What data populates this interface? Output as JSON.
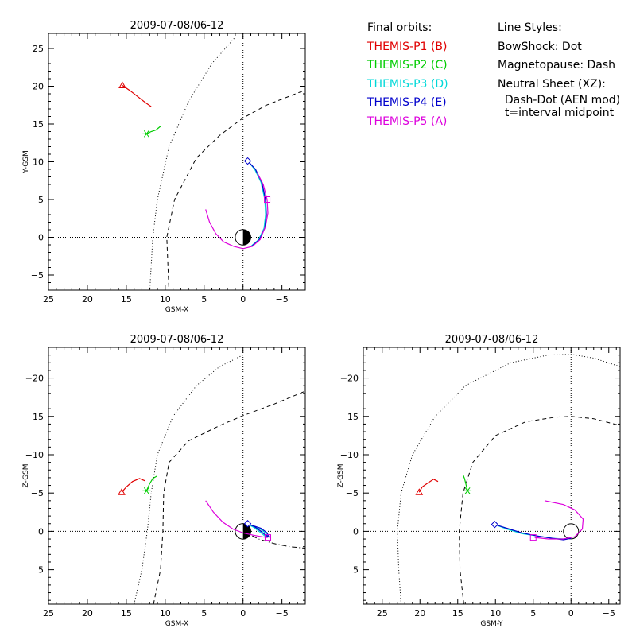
{
  "legend": {
    "orbits_title": "Final orbits:",
    "probes": [
      {
        "label": "THEMIS-P1 (B)",
        "color": "#e00000"
      },
      {
        "label": "THEMIS-P2 (C)",
        "color": "#00cc00"
      },
      {
        "label": "THEMIS-P3 (D)",
        "color": "#00d8d8"
      },
      {
        "label": "THEMIS-P4 (E)",
        "color": "#0000cc"
      },
      {
        "label": "THEMIS-P5 (A)",
        "color": "#dd00dd"
      }
    ],
    "styles_title": "Line Styles:",
    "styles": [
      "BowShock: Dot",
      "Magnetopause: Dash",
      "Neutral Sheet (XZ):",
      "  Dash-Dot (AEN mod)",
      "  t=interval midpoint"
    ]
  },
  "chart_data": [
    {
      "type": "line",
      "panel": "xy",
      "title": "2009-07-08/06-12",
      "xlabel": "GSM-X",
      "ylabel": "Y-GSM",
      "xlim": [
        25,
        -8
      ],
      "ylim": [
        27,
        -7
      ],
      "xticks": [
        25,
        20,
        15,
        10,
        5,
        0,
        -5
      ],
      "yticks": [
        -5,
        0,
        5,
        10,
        15,
        20,
        25
      ],
      "earth": "half-dark",
      "bowshock": [
        [
          12,
          -7.5
        ],
        [
          11.6,
          0
        ],
        [
          11,
          5
        ],
        [
          9.5,
          12
        ],
        [
          7,
          18
        ],
        [
          4,
          23
        ],
        [
          1,
          26.5
        ]
      ],
      "magnetopause": [
        [
          9.5,
          -7.5
        ],
        [
          9.8,
          0
        ],
        [
          8.8,
          5
        ],
        [
          6,
          10.5
        ],
        [
          3,
          13.5
        ],
        [
          0,
          15.8
        ],
        [
          -3,
          17.5
        ],
        [
          -6,
          18.7
        ],
        [
          -8,
          19.5
        ]
      ],
      "series": [
        {
          "name": "THEMIS-P1 (B)",
          "marker": "triangle",
          "points": [
            [
              15.5,
              20.1
            ],
            [
              14.5,
              19.4
            ],
            [
              13.5,
              18.6
            ],
            [
              12.5,
              17.8
            ],
            [
              11.8,
              17.3
            ]
          ]
        },
        {
          "name": "THEMIS-P2 (C)",
          "marker": "asterisk",
          "points": [
            [
              12.4,
              13.7
            ],
            [
              11.8,
              14.0
            ],
            [
              11.2,
              14.2
            ],
            [
              10.6,
              14.7
            ]
          ]
        },
        {
          "name": "THEMIS-P3 (D)",
          "marker": "none",
          "points": [
            [
              -0.6,
              10.1
            ],
            [
              -1.5,
              9.0
            ],
            [
              -2.3,
              7.3
            ],
            [
              -2.8,
              5.0
            ],
            [
              -2.9,
              3.0
            ],
            [
              -2.7,
              1.2
            ],
            [
              -2.0,
              -0.3
            ],
            [
              -1.0,
              -1.2
            ]
          ]
        },
        {
          "name": "THEMIS-P4 (E)",
          "marker": "diamond",
          "points": [
            [
              -0.6,
              10.1
            ],
            [
              -1.6,
              9.0
            ],
            [
              -2.4,
              7.3
            ],
            [
              -2.9,
              5.0
            ],
            [
              -3.0,
              3.0
            ],
            [
              -2.8,
              1.2
            ],
            [
              -2.1,
              -0.3
            ],
            [
              -1.1,
              -1.2
            ]
          ]
        },
        {
          "name": "THEMIS-P5 (A)",
          "marker": "square",
          "points": [
            [
              4.8,
              3.7
            ],
            [
              4.3,
              2.0
            ],
            [
              3.5,
              0.5
            ],
            [
              2.5,
              -0.6
            ],
            [
              1.2,
              -1.2
            ],
            [
              0,
              -1.5
            ],
            [
              -1.2,
              -1.2
            ],
            [
              -2.2,
              -0.3
            ],
            [
              -2.9,
              1.5
            ],
            [
              -3.2,
              3.2
            ],
            [
              -3.1,
              5.0
            ],
            [
              -2.6,
              7.0
            ],
            [
              -1.8,
              8.6
            ]
          ],
          "marker_at": [
            -3.1,
            5.0
          ]
        }
      ]
    },
    {
      "type": "line",
      "panel": "xz",
      "title": "2009-07-08/06-12",
      "xlabel": "GSM-X",
      "ylabel": "Z-GSM",
      "xlim": [
        25,
        -8
      ],
      "ylim": [
        -24,
        9.5
      ],
      "xticks": [
        25,
        20,
        15,
        10,
        5,
        0,
        -5
      ],
      "yticks": [
        5,
        0,
        -5,
        -10,
        -15,
        -20
      ],
      "earth": "half-dark",
      "bowshock": [
        [
          14,
          9.5
        ],
        [
          13,
          5
        ],
        [
          12.3,
          0
        ],
        [
          11.8,
          -5
        ],
        [
          11,
          -10
        ],
        [
          9,
          -15
        ],
        [
          6,
          -19
        ],
        [
          3,
          -21.5
        ],
        [
          0,
          -23
        ]
      ],
      "magnetopause": [
        [
          11.5,
          9.5
        ],
        [
          10.6,
          5
        ],
        [
          10.3,
          0
        ],
        [
          10.2,
          -5
        ],
        [
          9.5,
          -9
        ],
        [
          7,
          -11.8
        ],
        [
          3,
          -13.8
        ],
        [
          0,
          -15.1
        ],
        [
          -4,
          -16.6
        ],
        [
          -8,
          -18.3
        ]
      ],
      "neutral_sheet": [
        [
          0,
          0
        ],
        [
          -2,
          1.0
        ],
        [
          -4,
          1.6
        ],
        [
          -6,
          2.0
        ],
        [
          -8,
          2.2
        ]
      ],
      "series": [
        {
          "name": "THEMIS-P1 (B)",
          "marker": "triangle",
          "points": [
            [
              15.6,
              -5.1
            ],
            [
              15.0,
              -5.8
            ],
            [
              14.2,
              -6.5
            ],
            [
              13.3,
              -6.9
            ],
            [
              12.6,
              -6.6
            ]
          ]
        },
        {
          "name": "THEMIS-P2 (C)",
          "marker": "asterisk",
          "points": [
            [
              12.4,
              -5.3
            ],
            [
              12.0,
              -6.2
            ],
            [
              11.6,
              -6.9
            ],
            [
              11.1,
              -7.2
            ]
          ]
        },
        {
          "name": "THEMIS-P3 (D)",
          "marker": "none",
          "points": [
            [
              -0.6,
              -1.0
            ],
            [
              -1.4,
              -0.5
            ],
            [
              -2.2,
              0.1
            ],
            [
              -2.8,
              0.6
            ],
            [
              -3.2,
              0.7
            ],
            [
              -3.0,
              0.3
            ],
            [
              -2.2,
              -0.3
            ],
            [
              -1.0,
              -0.7
            ]
          ]
        },
        {
          "name": "THEMIS-P4 (E)",
          "marker": "diamond",
          "points": [
            [
              -0.6,
              -1.0
            ],
            [
              -1.5,
              -0.6
            ],
            [
              -2.3,
              0.0
            ],
            [
              -2.9,
              0.5
            ],
            [
              -3.3,
              0.7
            ],
            [
              -3.1,
              0.2
            ],
            [
              -2.3,
              -0.4
            ],
            [
              -1.1,
              -0.8
            ]
          ]
        },
        {
          "name": "THEMIS-P5 (A)",
          "marker": "square",
          "points": [
            [
              4.8,
              -4.0
            ],
            [
              3.8,
              -2.5
            ],
            [
              2.6,
              -1.2
            ],
            [
              1.3,
              -0.3
            ],
            [
              0,
              0.2
            ],
            [
              -1.3,
              0.5
            ],
            [
              -2.4,
              0.7
            ],
            [
              -3.1,
              0.8
            ],
            [
              -3.3,
              0.7
            ]
          ],
          "marker_at": [
            -3.2,
            0.8
          ]
        }
      ]
    },
    {
      "type": "line",
      "panel": "yz",
      "title": "2009-07-08/06-12",
      "xlabel": "GSM-Y",
      "ylabel": "Z-GSM",
      "xlim": [
        27.5,
        -6.5
      ],
      "ylim": [
        -24,
        9.5
      ],
      "xticks": [
        25,
        20,
        15,
        10,
        5,
        0,
        -5
      ],
      "yticks": [
        5,
        0,
        -5,
        -10,
        -15,
        -20
      ],
      "earth": "outline",
      "bowshock": [
        [
          22.5,
          9.5
        ],
        [
          22.8,
          5
        ],
        [
          23,
          0
        ],
        [
          22.5,
          -5
        ],
        [
          21,
          -10
        ],
        [
          18,
          -15
        ],
        [
          14,
          -19
        ],
        [
          8,
          -22
        ],
        [
          3,
          -23
        ],
        [
          0,
          -23.1
        ],
        [
          -3,
          -22.6
        ],
        [
          -6.5,
          -21.5
        ]
      ],
      "magnetopause": [
        [
          14.2,
          9.5
        ],
        [
          14.7,
          5
        ],
        [
          14.8,
          0
        ],
        [
          14.3,
          -5
        ],
        [
          13,
          -9
        ],
        [
          10,
          -12.5
        ],
        [
          6,
          -14.3
        ],
        [
          2,
          -14.9
        ],
        [
          0,
          -15
        ],
        [
          -3,
          -14.7
        ],
        [
          -6.5,
          -13.8
        ]
      ],
      "series": [
        {
          "name": "THEMIS-P1 (B)",
          "marker": "triangle",
          "points": [
            [
              20.1,
              -5.1
            ],
            [
              19.7,
              -5.8
            ],
            [
              19.0,
              -6.3
            ],
            [
              18.2,
              -6.8
            ],
            [
              17.6,
              -6.5
            ]
          ]
        },
        {
          "name": "THEMIS-P2 (C)",
          "marker": "asterisk",
          "points": [
            [
              13.7,
              -5.3
            ],
            [
              13.9,
              -6.1
            ],
            [
              14.1,
              -6.9
            ],
            [
              14.3,
              -7.4
            ]
          ]
        },
        {
          "name": "THEMIS-P3 (D)",
          "marker": "none",
          "points": [
            [
              10.1,
              -0.9
            ],
            [
              8.5,
              -0.3
            ],
            [
              6.5,
              0.3
            ],
            [
              4.5,
              0.6
            ],
            [
              2.5,
              0.9
            ],
            [
              1,
              1.0
            ],
            [
              0,
              0.8
            ]
          ]
        },
        {
          "name": "THEMIS-P4 (E)",
          "marker": "diamond",
          "points": [
            [
              10.1,
              -0.9
            ],
            [
              8.5,
              -0.4
            ],
            [
              6.5,
              0.2
            ],
            [
              4.5,
              0.6
            ],
            [
              2.5,
              0.9
            ],
            [
              1,
              1.1
            ],
            [
              0,
              0.9
            ]
          ]
        },
        {
          "name": "THEMIS-P5 (A)",
          "marker": "square",
          "points": [
            [
              4.8,
              0.8
            ],
            [
              3.0,
              1.0
            ],
            [
              1.0,
              1.0
            ],
            [
              -0.5,
              0.7
            ],
            [
              -1.5,
              -0.3
            ],
            [
              -1.6,
              -1.6
            ],
            [
              -0.5,
              -2.8
            ],
            [
              1.0,
              -3.5
            ],
            [
              3.5,
              -4.0
            ]
          ],
          "marker_at": [
            5.0,
            0.8
          ]
        }
      ]
    }
  ]
}
